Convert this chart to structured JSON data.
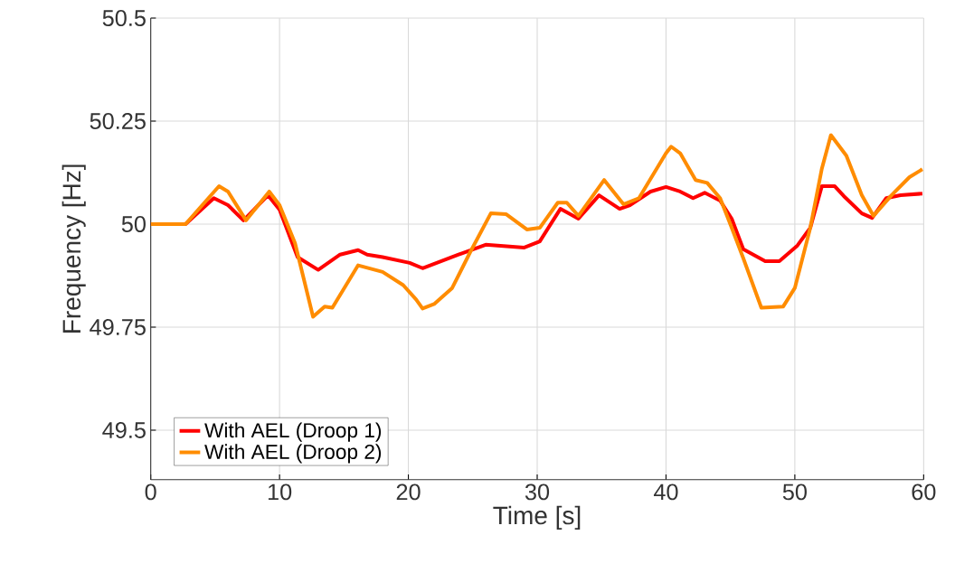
{
  "chart_data": {
    "type": "line",
    "xlabel": "Time [s]",
    "ylabel": "Frequency [Hz]",
    "xlim": [
      0,
      60
    ],
    "ylim": [
      49.38,
      50.5
    ],
    "xticks": [
      0,
      10,
      20,
      30,
      40,
      50,
      60
    ],
    "yticks": [
      {
        "value": 49.5,
        "label": "49.5"
      },
      {
        "value": 49.75,
        "label": "49.75"
      },
      {
        "value": 50,
        "label": "50"
      },
      {
        "value": 50.25,
        "label": "50.25"
      },
      {
        "value": 50.5,
        "label": "50.5"
      }
    ],
    "grid": true,
    "legend": "bottom left",
    "line_style": "solid",
    "marker": "none",
    "series": [
      {
        "name": "With AEL (Droop 1)",
        "color": "#ff0000",
        "x": [
          0,
          2.7,
          4.9,
          6.0,
          7.2,
          9.1,
          10.0,
          11.4,
          13.0,
          14.7,
          16.1,
          16.8,
          18.0,
          20.1,
          21.1,
          23.9,
          26.0,
          29.0,
          30.2,
          31.8,
          33.2,
          34.8,
          36.4,
          37.2,
          38.8,
          40.0,
          41.1,
          42.1,
          43.0,
          44.2,
          45.1,
          46.0,
          47.7,
          48.8,
          50.2,
          51.2,
          52.1,
          53.1,
          53.8,
          55.2,
          56.0,
          57.1,
          58.2,
          59.9
        ],
        "values": [
          50.0,
          50.0,
          50.063,
          50.046,
          50.009,
          50.07,
          50.035,
          49.92,
          49.889,
          49.926,
          49.937,
          49.926,
          49.92,
          49.906,
          49.893,
          49.926,
          49.95,
          49.943,
          49.958,
          50.037,
          50.013,
          50.07,
          50.037,
          50.046,
          50.079,
          50.09,
          50.079,
          50.063,
          50.076,
          50.057,
          50.013,
          49.939,
          49.91,
          49.91,
          49.948,
          49.991,
          50.092,
          50.092,
          50.068,
          50.026,
          50.015,
          50.063,
          50.07,
          50.074
        ]
      },
      {
        "name": "With AEL (Droop 2)",
        "color": "#ff8c00",
        "x": [
          0,
          2.7,
          5.3,
          6.0,
          7.4,
          9.2,
          10.0,
          11.2,
          12.6,
          13.5,
          14.1,
          16.1,
          18.0,
          19.6,
          20.6,
          21.1,
          22.0,
          23.4,
          24.8,
          26.4,
          27.6,
          29.2,
          30.2,
          31.6,
          32.3,
          33.2,
          35.2,
          36.7,
          37.9,
          40.0,
          40.4,
          41.1,
          42.3,
          43.2,
          44.2,
          45.1,
          46.0,
          47.4,
          49.1,
          50.0,
          51.2,
          52.1,
          52.8,
          54.0,
          55.2,
          56.1,
          57.5,
          58.9,
          59.9
        ],
        "values": [
          50.0,
          50.0,
          50.092,
          50.079,
          50.009,
          50.079,
          50.046,
          49.954,
          49.775,
          49.8,
          49.797,
          49.9,
          49.884,
          49.852,
          49.817,
          49.795,
          49.806,
          49.845,
          49.932,
          50.026,
          50.024,
          49.987,
          49.991,
          50.052,
          50.052,
          50.02,
          50.107,
          50.048,
          50.063,
          50.172,
          50.188,
          50.172,
          50.107,
          50.1,
          50.063,
          49.991,
          49.917,
          49.797,
          49.8,
          49.845,
          49.991,
          50.135,
          50.216,
          50.166,
          50.07,
          50.02,
          50.07,
          50.114,
          50.133
        ]
      }
    ]
  }
}
